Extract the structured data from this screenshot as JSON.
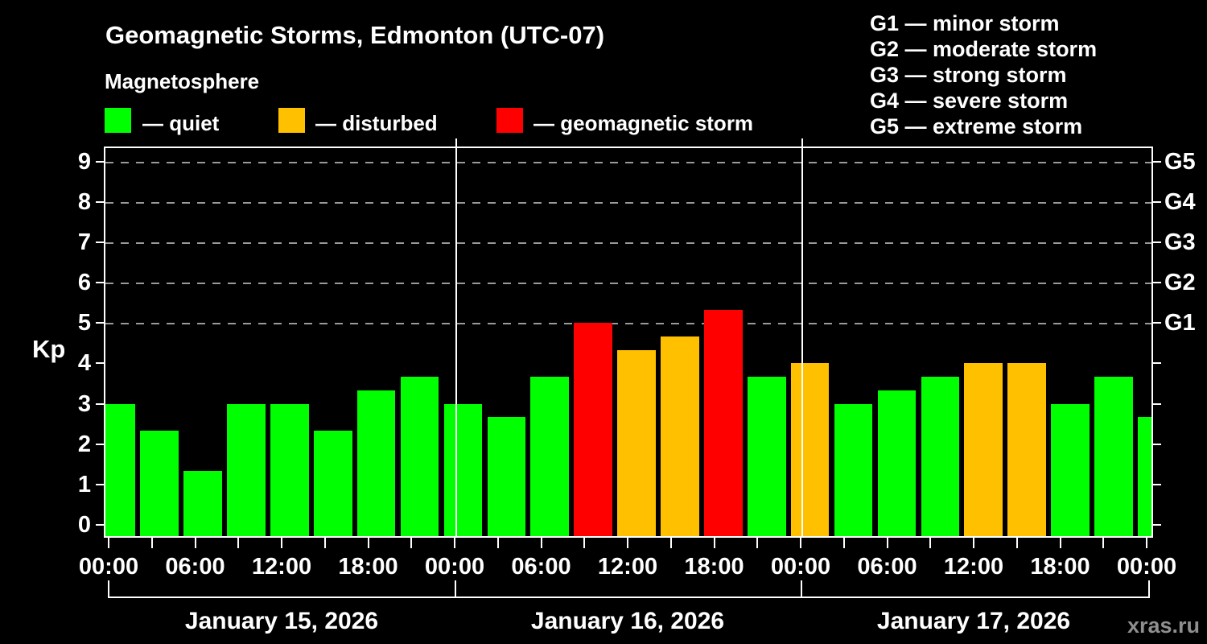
{
  "title": "Geomagnetic Storms, Edmonton (UTC-07)",
  "subtitle": "Magnetosphere",
  "legend": {
    "items": [
      {
        "name": "quiet",
        "label": "— quiet",
        "color": "#00ff00"
      },
      {
        "name": "disturbed",
        "label": "— disturbed",
        "color": "#ffc000"
      },
      {
        "name": "storm",
        "label": "— geomagnetic storm",
        "color": "#ff0000"
      }
    ]
  },
  "g_legend": [
    "G1 — minor storm",
    "G2 — moderate storm",
    "G3 — strong storm",
    "G4 — severe storm",
    "G5 — extreme storm"
  ],
  "watermark": "xras.ru",
  "chart_data": {
    "type": "bar",
    "ylabel": "Kp",
    "ylim": [
      0,
      9
    ],
    "y_tick_labels": [
      "0",
      "1",
      "2",
      "3",
      "4",
      "5",
      "6",
      "7",
      "8",
      "9"
    ],
    "gridlines_at_kp": [
      5,
      6,
      7,
      8,
      9
    ],
    "right_axis_labels": [
      {
        "text": "G1",
        "kp": 5
      },
      {
        "text": "G2",
        "kp": 6
      },
      {
        "text": "G3",
        "kp": 7
      },
      {
        "text": "G4",
        "kp": 8
      },
      {
        "text": "G5",
        "kp": 9
      }
    ],
    "x_tick_interval_hours": 3,
    "x_tick_labels": [
      "00:00",
      "06:00",
      "12:00",
      "18:00",
      "00:00",
      "06:00",
      "12:00",
      "18:00",
      "00:00",
      "06:00",
      "12:00",
      "18:00",
      "00:00"
    ],
    "days": [
      {
        "date": "January 15, 2026",
        "kp": [
          3.0,
          2.33,
          1.33,
          3.0,
          3.0,
          2.33,
          3.33,
          3.67
        ]
      },
      {
        "date": "January 16, 2026",
        "kp": [
          3.0,
          2.67,
          3.67,
          5.0,
          4.33,
          4.67,
          5.33,
          3.67
        ]
      },
      {
        "date": "January 17, 2026",
        "kp": [
          4.0,
          3.0,
          3.33,
          3.67,
          4.0,
          4.0,
          3.0,
          3.67
        ]
      }
    ],
    "partial_next_day_kp": [
      2.67
    ],
    "color_rules": {
      "disturbed_at_or_above": 4,
      "storm_at_or_above": 5
    },
    "colors": {
      "quiet": "#00ff00",
      "disturbed": "#ffc000",
      "storm": "#ff0000"
    }
  }
}
